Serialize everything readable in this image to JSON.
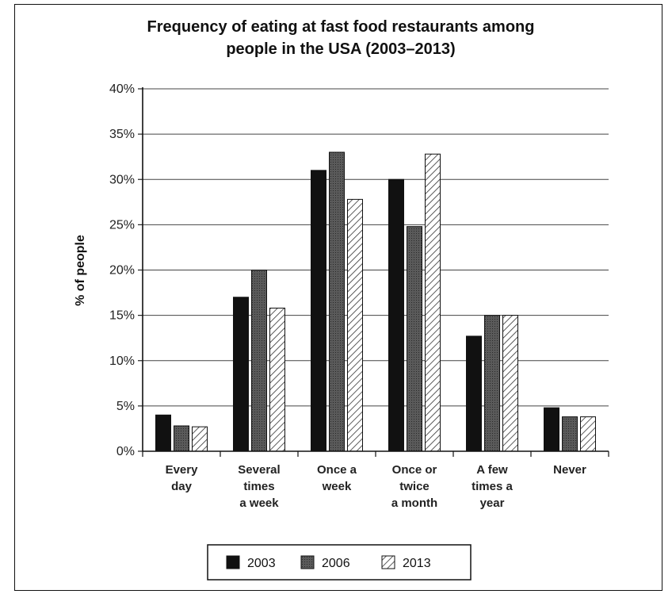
{
  "chart_data": {
    "type": "bar",
    "title_lines": [
      "Frequency of eating at fast food restaurants among",
      "people in the USA (2003–2013)"
    ],
    "ylabel": "% of people",
    "xlabel": "",
    "ylim": [
      0,
      40
    ],
    "yticks": [
      0,
      5,
      10,
      15,
      20,
      25,
      30,
      35,
      40
    ],
    "ytick_labels": [
      "0%",
      "5%",
      "10%",
      "15%",
      "20%",
      "25%",
      "30%",
      "35%",
      "40%"
    ],
    "grid": true,
    "legend_position": "bottom",
    "categories": [
      [
        "Every",
        "day"
      ],
      [
        "Several",
        "times",
        "a week"
      ],
      [
        "Once a",
        "week"
      ],
      [
        "Once or",
        "twice",
        "a month"
      ],
      [
        "A few",
        "times a",
        "year"
      ],
      [
        "Never"
      ]
    ],
    "series": [
      {
        "name": "2003",
        "style": "solid-black",
        "values": [
          4,
          17,
          31,
          30,
          12.7,
          4.8
        ]
      },
      {
        "name": "2006",
        "style": "dark-gray",
        "values": [
          2.8,
          20,
          33,
          24.8,
          15,
          3.8
        ]
      },
      {
        "name": "2013",
        "style": "hatched",
        "values": [
          2.7,
          15.8,
          27.8,
          32.8,
          15,
          3.8
        ]
      }
    ],
    "colors": {
      "solid-black": "#111111",
      "dark-gray": "#555555",
      "hatch_line": "#333333"
    }
  }
}
